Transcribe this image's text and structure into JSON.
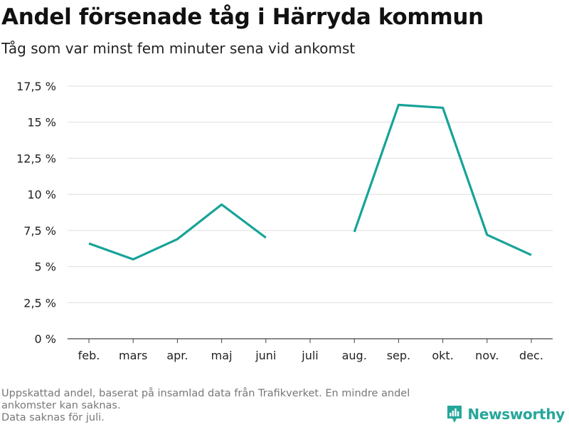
{
  "title": "Andel försenade tåg i Härryda kommun",
  "subtitle": "Tåg som var minst fem minuter sena vid ankomst",
  "chart_data": {
    "type": "line",
    "categories": [
      "feb.",
      "mars",
      "apr.",
      "maj",
      "juni",
      "juli",
      "aug.",
      "sep.",
      "okt.",
      "nov.",
      "dec."
    ],
    "series": [
      {
        "values": [
          6.6,
          5.5,
          6.9,
          9.3,
          7.0,
          null,
          7.4,
          16.2,
          16.0,
          7.2,
          5.8
        ],
        "color": "#17a398"
      }
    ],
    "y_ticks": [
      {
        "value": 0,
        "label": "0 %"
      },
      {
        "value": 2.5,
        "label": "2,5 %"
      },
      {
        "value": 5,
        "label": "5 %"
      },
      {
        "value": 7.5,
        "label": "7,5 %"
      },
      {
        "value": 10,
        "label": "10 %"
      },
      {
        "value": 12.5,
        "label": "12,5 %"
      },
      {
        "value": 15,
        "label": "15 %"
      },
      {
        "value": 17.5,
        "label": "17,5 %"
      }
    ],
    "ylim": [
      0,
      17.5
    ],
    "grid": true,
    "legend": "none"
  },
  "footnote": {
    "line1": "Uppskattad andel, baserat på insamlad data från Trafikverket. En mindre andel ankomster kan saknas.",
    "line2": "Data saknas för juli."
  },
  "brand": {
    "name": "Newsworthy",
    "icon": "newsworthy-logo-icon",
    "color": "#26a69a"
  }
}
